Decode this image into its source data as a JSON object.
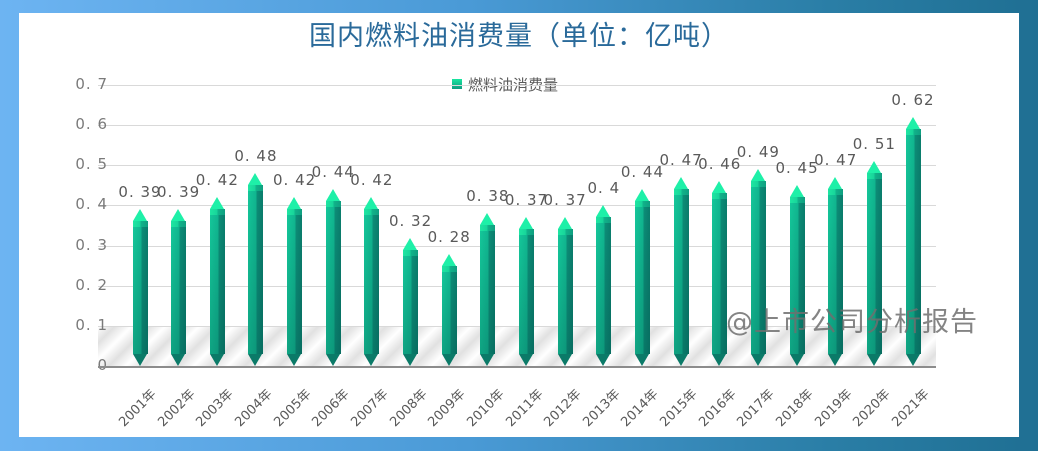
{
  "chart_data": {
    "type": "bar",
    "title": "国内燃料油消费量（单位：亿吨）",
    "legend": [
      "燃料油消费量"
    ],
    "legend_position": "top",
    "categories": [
      "2001年",
      "2002年",
      "2003年",
      "2004年",
      "2005年",
      "2006年",
      "2007年",
      "2008年",
      "2009年",
      "2010年",
      "2011年",
      "2012年",
      "2013年",
      "2014年",
      "2015年",
      "2016年",
      "2017年",
      "2018年",
      "2019年",
      "2020年",
      "2021年"
    ],
    "series": [
      {
        "name": "燃料油消费量",
        "values": [
          0.39,
          0.39,
          0.42,
          0.48,
          0.42,
          0.44,
          0.42,
          0.32,
          0.28,
          0.38,
          0.37,
          0.37,
          0.4,
          0.44,
          0.47,
          0.46,
          0.49,
          0.45,
          0.47,
          0.51,
          0.62
        ]
      }
    ],
    "data_labels": [
      "0. 39",
      "0. 39",
      "0. 42",
      "0. 48",
      "0. 42",
      "0. 44",
      "0. 42",
      "0. 32",
      "0. 28",
      "0. 38",
      "0. 37",
      "0. 37",
      "0. 4",
      "0. 44",
      "0. 47",
      "0. 46",
      "0. 49",
      "0. 45",
      "0. 47",
      "0. 51",
      "0. 62"
    ],
    "xlabel": "",
    "ylabel": "",
    "ylim": [
      0,
      0.7
    ],
    "yticks": [
      "0",
      "0. 1",
      "0. 2",
      "0. 3",
      "0. 4",
      "0. 5",
      "0. 6",
      "0. 7"
    ],
    "grid": true,
    "colors": {
      "bar_top": "#1ef0a8",
      "bar_body": "#10b58f",
      "bar_shadow": "#0a7d6c",
      "title": "#2a6a9a"
    }
  },
  "watermark": "@上市公司分析报告"
}
